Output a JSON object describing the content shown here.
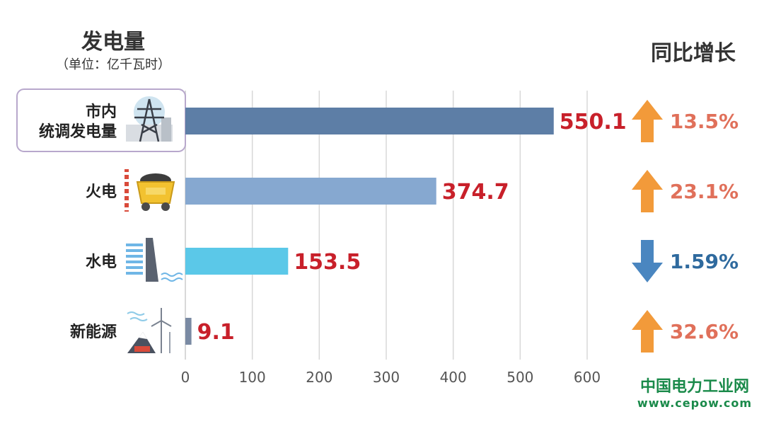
{
  "chart_data": {
    "type": "bar",
    "orientation": "horizontal",
    "title": "发电量",
    "subtitle": "（单位：亿千瓦时）",
    "categories": [
      {
        "label_lines": [
          "市内",
          "统调发电量"
        ],
        "icon": "power-tower-icon"
      },
      {
        "label_lines": [
          "火电"
        ],
        "icon": "coal-cart-icon"
      },
      {
        "label_lines": [
          "水电"
        ],
        "icon": "dam-icon"
      },
      {
        "label_lines": [
          "新能源"
        ],
        "icon": "wind-solar-icon"
      }
    ],
    "values": [
      550.1,
      374.7,
      153.5,
      9.1
    ],
    "value_labels": [
      "550.1",
      "374.7",
      "153.5",
      "9.1"
    ],
    "growth_title": "同比增长",
    "growth": [
      {
        "label": "13.5%",
        "direction": "up"
      },
      {
        "label": "23.1%",
        "direction": "up"
      },
      {
        "label": "1.59%",
        "direction": "down"
      },
      {
        "label": "32.6%",
        "direction": "up"
      }
    ],
    "xlim": [
      0,
      600
    ],
    "xticks": [
      "0",
      "100",
      "200",
      "300",
      "400",
      "500",
      "600"
    ],
    "grid": true,
    "colors": {
      "bars": [
        "#5d7ea6",
        "#86a8d0",
        "#5bc8e8",
        "#7a8aa3"
      ],
      "value_label": "#c8202a",
      "up_arrow": "#f29a3a",
      "down_arrow": "#4a86c0",
      "up_text": "#e0705a",
      "down_text": "#2f6a9e",
      "grid": "#d8d8d8"
    }
  },
  "watermark": {
    "line1": "中国电力工业网",
    "line2": "www.cepow.com"
  }
}
